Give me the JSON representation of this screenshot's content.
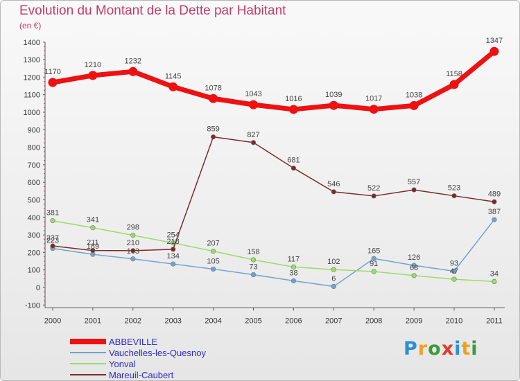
{
  "title": "Evolution du Montant de la Dette par Habitant",
  "unit": "(en €)",
  "logo": {
    "letters": [
      "P",
      "r",
      "o",
      "x",
      "i",
      "t",
      "i"
    ],
    "colors": [
      "#2b8fd8",
      "#f0a020",
      "#3b9a3b",
      "#e03c2c",
      "#2b8fd8",
      "#f0a020",
      "#3b9a3b"
    ]
  },
  "chart_data": {
    "type": "line",
    "x": [
      "2000",
      "2001",
      "2002",
      "2003",
      "2004",
      "2005",
      "2006",
      "2007",
      "2008",
      "2009",
      "2010",
      "2011"
    ],
    "ylim": [
      -100,
      1400
    ],
    "yticks": [
      -100,
      0,
      100,
      200,
      300,
      400,
      500,
      600,
      700,
      800,
      900,
      1000,
      1100,
      1200,
      1300,
      1400
    ],
    "grid": false,
    "legend_position": "bottom-left",
    "series": [
      {
        "name": "ABBEVILLE",
        "color": "#ee1111",
        "emphasis": true,
        "values": [
          1170,
          1210,
          1232,
          1145,
          1078,
          1043,
          1016,
          1039,
          1017,
          1038,
          1158,
          1347
        ]
      },
      {
        "name": "Vauchelles-les-Quesnoy",
        "color": "#6fa3d0",
        "values": [
          223,
          189,
          163,
          134,
          105,
          73,
          38,
          6,
          165,
          126,
          93,
          387
        ]
      },
      {
        "name": "Yonval",
        "color": "#9adc6a",
        "values": [
          381,
          341,
          298,
          254,
          207,
          158,
          117,
          102,
          91,
          68,
          47,
          34
        ]
      },
      {
        "name": "Mareuil-Caubert",
        "color": "#7a2a2a",
        "values": [
          237,
          211,
          210,
          218,
          859,
          827,
          681,
          546,
          522,
          557,
          523,
          489
        ]
      }
    ]
  }
}
